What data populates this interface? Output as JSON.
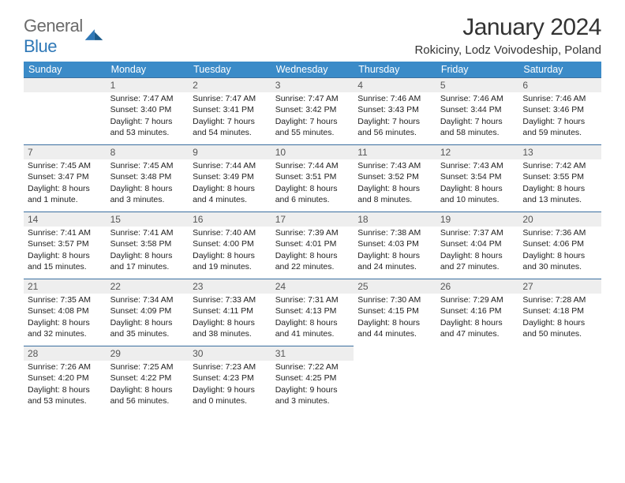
{
  "logo": {
    "text1": "General",
    "text2": "Blue"
  },
  "header": {
    "title": "January 2024",
    "location": "Rokiciny, Lodz Voivodeship, Poland"
  },
  "colors": {
    "header_bg": "#3b8bc8",
    "header_text": "#ffffff",
    "daynum_bg": "#eeeeee",
    "rule": "#3b6fa0",
    "logo_gray": "#6b6b6b",
    "logo_blue": "#2f78b7"
  },
  "dow": [
    "Sunday",
    "Monday",
    "Tuesday",
    "Wednesday",
    "Thursday",
    "Friday",
    "Saturday"
  ],
  "weeks": [
    [
      null,
      {
        "n": "1",
        "sr": "Sunrise: 7:47 AM",
        "ss": "Sunset: 3:40 PM",
        "dl": "Daylight: 7 hours and 53 minutes."
      },
      {
        "n": "2",
        "sr": "Sunrise: 7:47 AM",
        "ss": "Sunset: 3:41 PM",
        "dl": "Daylight: 7 hours and 54 minutes."
      },
      {
        "n": "3",
        "sr": "Sunrise: 7:47 AM",
        "ss": "Sunset: 3:42 PM",
        "dl": "Daylight: 7 hours and 55 minutes."
      },
      {
        "n": "4",
        "sr": "Sunrise: 7:46 AM",
        "ss": "Sunset: 3:43 PM",
        "dl": "Daylight: 7 hours and 56 minutes."
      },
      {
        "n": "5",
        "sr": "Sunrise: 7:46 AM",
        "ss": "Sunset: 3:44 PM",
        "dl": "Daylight: 7 hours and 58 minutes."
      },
      {
        "n": "6",
        "sr": "Sunrise: 7:46 AM",
        "ss": "Sunset: 3:46 PM",
        "dl": "Daylight: 7 hours and 59 minutes."
      }
    ],
    [
      {
        "n": "7",
        "sr": "Sunrise: 7:45 AM",
        "ss": "Sunset: 3:47 PM",
        "dl": "Daylight: 8 hours and 1 minute."
      },
      {
        "n": "8",
        "sr": "Sunrise: 7:45 AM",
        "ss": "Sunset: 3:48 PM",
        "dl": "Daylight: 8 hours and 3 minutes."
      },
      {
        "n": "9",
        "sr": "Sunrise: 7:44 AM",
        "ss": "Sunset: 3:49 PM",
        "dl": "Daylight: 8 hours and 4 minutes."
      },
      {
        "n": "10",
        "sr": "Sunrise: 7:44 AM",
        "ss": "Sunset: 3:51 PM",
        "dl": "Daylight: 8 hours and 6 minutes."
      },
      {
        "n": "11",
        "sr": "Sunrise: 7:43 AM",
        "ss": "Sunset: 3:52 PM",
        "dl": "Daylight: 8 hours and 8 minutes."
      },
      {
        "n": "12",
        "sr": "Sunrise: 7:43 AM",
        "ss": "Sunset: 3:54 PM",
        "dl": "Daylight: 8 hours and 10 minutes."
      },
      {
        "n": "13",
        "sr": "Sunrise: 7:42 AM",
        "ss": "Sunset: 3:55 PM",
        "dl": "Daylight: 8 hours and 13 minutes."
      }
    ],
    [
      {
        "n": "14",
        "sr": "Sunrise: 7:41 AM",
        "ss": "Sunset: 3:57 PM",
        "dl": "Daylight: 8 hours and 15 minutes."
      },
      {
        "n": "15",
        "sr": "Sunrise: 7:41 AM",
        "ss": "Sunset: 3:58 PM",
        "dl": "Daylight: 8 hours and 17 minutes."
      },
      {
        "n": "16",
        "sr": "Sunrise: 7:40 AM",
        "ss": "Sunset: 4:00 PM",
        "dl": "Daylight: 8 hours and 19 minutes."
      },
      {
        "n": "17",
        "sr": "Sunrise: 7:39 AM",
        "ss": "Sunset: 4:01 PM",
        "dl": "Daylight: 8 hours and 22 minutes."
      },
      {
        "n": "18",
        "sr": "Sunrise: 7:38 AM",
        "ss": "Sunset: 4:03 PM",
        "dl": "Daylight: 8 hours and 24 minutes."
      },
      {
        "n": "19",
        "sr": "Sunrise: 7:37 AM",
        "ss": "Sunset: 4:04 PM",
        "dl": "Daylight: 8 hours and 27 minutes."
      },
      {
        "n": "20",
        "sr": "Sunrise: 7:36 AM",
        "ss": "Sunset: 4:06 PM",
        "dl": "Daylight: 8 hours and 30 minutes."
      }
    ],
    [
      {
        "n": "21",
        "sr": "Sunrise: 7:35 AM",
        "ss": "Sunset: 4:08 PM",
        "dl": "Daylight: 8 hours and 32 minutes."
      },
      {
        "n": "22",
        "sr": "Sunrise: 7:34 AM",
        "ss": "Sunset: 4:09 PM",
        "dl": "Daylight: 8 hours and 35 minutes."
      },
      {
        "n": "23",
        "sr": "Sunrise: 7:33 AM",
        "ss": "Sunset: 4:11 PM",
        "dl": "Daylight: 8 hours and 38 minutes."
      },
      {
        "n": "24",
        "sr": "Sunrise: 7:31 AM",
        "ss": "Sunset: 4:13 PM",
        "dl": "Daylight: 8 hours and 41 minutes."
      },
      {
        "n": "25",
        "sr": "Sunrise: 7:30 AM",
        "ss": "Sunset: 4:15 PM",
        "dl": "Daylight: 8 hours and 44 minutes."
      },
      {
        "n": "26",
        "sr": "Sunrise: 7:29 AM",
        "ss": "Sunset: 4:16 PM",
        "dl": "Daylight: 8 hours and 47 minutes."
      },
      {
        "n": "27",
        "sr": "Sunrise: 7:28 AM",
        "ss": "Sunset: 4:18 PM",
        "dl": "Daylight: 8 hours and 50 minutes."
      }
    ],
    [
      {
        "n": "28",
        "sr": "Sunrise: 7:26 AM",
        "ss": "Sunset: 4:20 PM",
        "dl": "Daylight: 8 hours and 53 minutes."
      },
      {
        "n": "29",
        "sr": "Sunrise: 7:25 AM",
        "ss": "Sunset: 4:22 PM",
        "dl": "Daylight: 8 hours and 56 minutes."
      },
      {
        "n": "30",
        "sr": "Sunrise: 7:23 AM",
        "ss": "Sunset: 4:23 PM",
        "dl": "Daylight: 9 hours and 0 minutes."
      },
      {
        "n": "31",
        "sr": "Sunrise: 7:22 AM",
        "ss": "Sunset: 4:25 PM",
        "dl": "Daylight: 9 hours and 3 minutes."
      },
      null,
      null,
      null
    ]
  ]
}
